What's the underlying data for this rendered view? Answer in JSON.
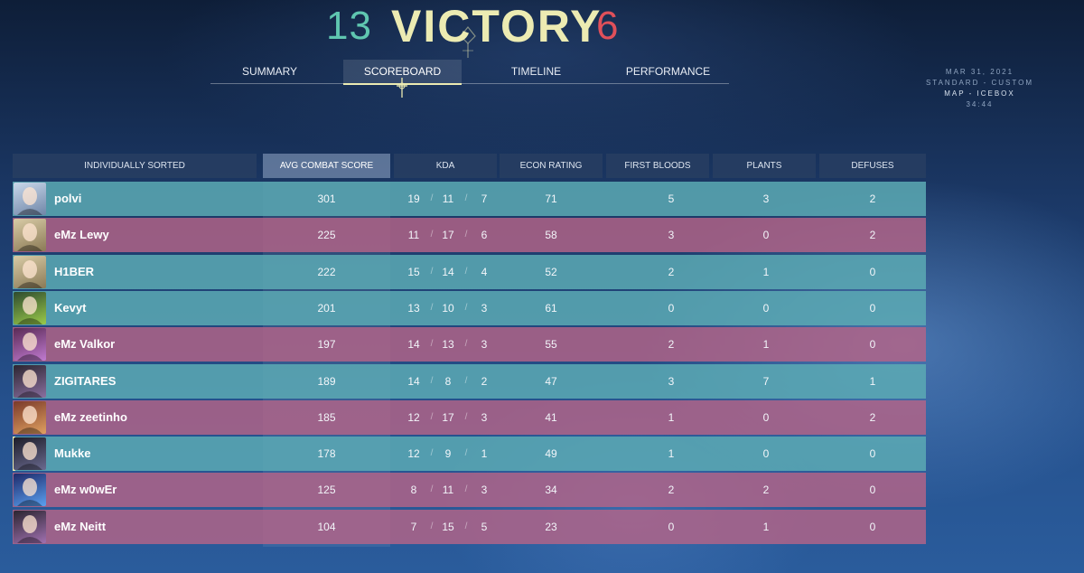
{
  "header": {
    "ally_score": "13",
    "result": "VICTORY",
    "enemy_score": "6"
  },
  "tabs": [
    {
      "label": "SUMMARY",
      "active": false
    },
    {
      "label": "SCOREBOARD",
      "active": true
    },
    {
      "label": "TIMELINE",
      "active": false
    },
    {
      "label": "PERFORMANCE",
      "active": false
    }
  ],
  "match_info": {
    "date": "MAR 31, 2021",
    "mode": "STANDARD - CUSTOM",
    "map": "MAP - ICEBOX",
    "duration": "34:44"
  },
  "table": {
    "columns": [
      "INDIVIDUALLY SORTED",
      "AVG COMBAT SCORE",
      "KDA",
      "ECON RATING",
      "FIRST BLOODS",
      "PLANTS",
      "DEFUSES"
    ],
    "rows": [
      {
        "name": "polvi",
        "team": "ally",
        "acs": "301",
        "k": "19",
        "d": "11",
        "a": "7",
        "econ": "71",
        "fb": "5",
        "plants": "3",
        "defuses": "2",
        "agent_icon": "agent-portrait-icon"
      },
      {
        "name": "eMz Lewy",
        "team": "enemy",
        "acs": "225",
        "k": "11",
        "d": "17",
        "a": "6",
        "econ": "58",
        "fb": "3",
        "plants": "0",
        "defuses": "2",
        "agent_icon": "agent-portrait-icon"
      },
      {
        "name": "H1BER",
        "team": "ally",
        "acs": "222",
        "k": "15",
        "d": "14",
        "a": "4",
        "econ": "52",
        "fb": "2",
        "plants": "1",
        "defuses": "0",
        "agent_icon": "agent-portrait-icon"
      },
      {
        "name": "Kevyt",
        "team": "ally",
        "acs": "201",
        "k": "13",
        "d": "10",
        "a": "3",
        "econ": "61",
        "fb": "0",
        "plants": "0",
        "defuses": "0",
        "agent_icon": "agent-portrait-icon"
      },
      {
        "name": "eMz Valkor",
        "team": "enemy",
        "acs": "197",
        "k": "14",
        "d": "13",
        "a": "3",
        "econ": "55",
        "fb": "2",
        "plants": "1",
        "defuses": "0",
        "agent_icon": "agent-portrait-icon"
      },
      {
        "name": "ZIGITARES",
        "team": "ally",
        "acs": "189",
        "k": "14",
        "d": "8",
        "a": "2",
        "econ": "47",
        "fb": "3",
        "plants": "7",
        "defuses": "1",
        "agent_icon": "agent-portrait-icon"
      },
      {
        "name": "eMz zeetinho",
        "team": "enemy",
        "acs": "185",
        "k": "12",
        "d": "17",
        "a": "3",
        "econ": "41",
        "fb": "1",
        "plants": "0",
        "defuses": "2",
        "agent_icon": "agent-portrait-icon"
      },
      {
        "name": "Mukke",
        "team": "ally",
        "self": true,
        "acs": "178",
        "k": "12",
        "d": "9",
        "a": "1",
        "econ": "49",
        "fb": "1",
        "plants": "0",
        "defuses": "0",
        "agent_icon": "agent-portrait-icon"
      },
      {
        "name": "eMz w0wEr",
        "team": "enemy",
        "acs": "125",
        "k": "8",
        "d": "11",
        "a": "3",
        "econ": "34",
        "fb": "2",
        "plants": "2",
        "defuses": "0",
        "agent_icon": "agent-portrait-icon"
      },
      {
        "name": "eMz Neitt",
        "team": "enemy",
        "acs": "104",
        "k": "7",
        "d": "15",
        "a": "5",
        "econ": "23",
        "fb": "0",
        "plants": "1",
        "defuses": "0",
        "agent_icon": "agent-portrait-icon"
      }
    ]
  },
  "colors": {
    "ally": "#5fc6b0",
    "enemy": "#e0505a",
    "victory": "#ecebb2"
  }
}
